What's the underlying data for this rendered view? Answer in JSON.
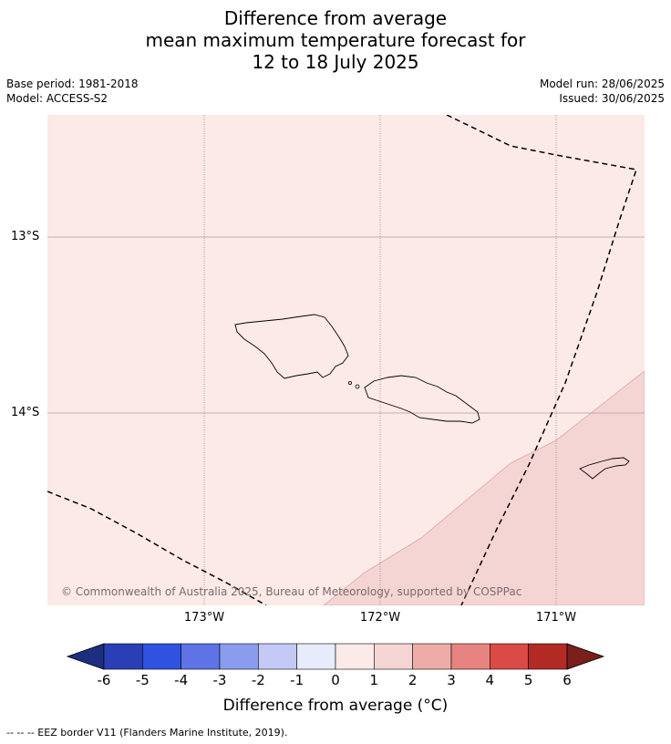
{
  "title": {
    "line1": "Difference from average",
    "line2": "mean maximum temperature forecast for",
    "line3": "12 to 18 July 2025"
  },
  "meta_left": {
    "base_period": "Base period: 1981-2018",
    "model": "Model: ACCESS-S2"
  },
  "meta_right": {
    "model_run": "Model run: 28/06/2025",
    "issued": "Issued: 30/06/2025"
  },
  "map": {
    "latitude_labels": [
      "13°S",
      "14°S"
    ],
    "longitude_labels": [
      "173°W",
      "172°W",
      "171°W"
    ],
    "copyright": "© Commonwealth of Australia 2025, Bureau of Meteorology, supported by COSPPac",
    "fill_colors": {
      "background_anomaly_0_to_1": "#fbeae8",
      "anomaly_1_to_2": "#f5d5d4"
    }
  },
  "colorbar": {
    "ticks": [
      "-6",
      "-5",
      "-4",
      "-3",
      "-2",
      "-1",
      "0",
      "1",
      "2",
      "3",
      "4",
      "5",
      "6"
    ],
    "colors": [
      "#1c2e80",
      "#2a3fb5",
      "#3052e0",
      "#5d73e6",
      "#8a9ced",
      "#c4c9f5",
      "#e8ebfc",
      "#fbeae8",
      "#f5d5d4",
      "#eeaca9",
      "#e8847f",
      "#db4a44",
      "#b12a24",
      "#7a1f1c"
    ],
    "label": "Difference from average (°C)"
  },
  "footnote": "-- -- -- EEZ border V11 (Flanders Marine Institute, 2019)."
}
